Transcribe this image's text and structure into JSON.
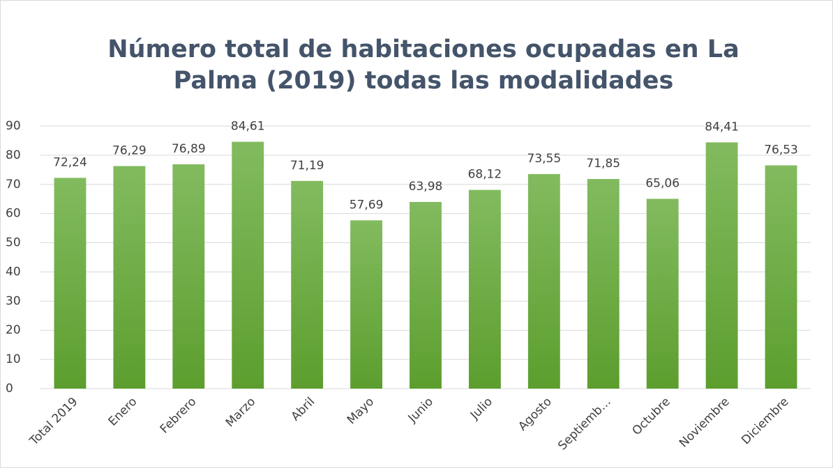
{
  "chart_data": {
    "type": "bar",
    "title": [
      "Número total  de habitaciones ocupadas en  La",
      "Palma (2019) todas las modalidades"
    ],
    "categories": [
      "Total 2019",
      "Enero",
      "Febrero",
      "Marzo",
      "Abril",
      "Mayo",
      "Junio",
      "Julio",
      "Agosto",
      "Septiemb…",
      "Octubre",
      "Noviembre",
      "Diciembre"
    ],
    "values": [
      72.24,
      76.29,
      76.89,
      84.61,
      71.19,
      57.69,
      63.98,
      68.12,
      73.55,
      71.85,
      65.06,
      84.41,
      76.53
    ],
    "value_labels": [
      "72,24",
      "76,29",
      "76,89",
      "84,61",
      "71,19",
      "57,69",
      "63,98",
      "68,12",
      "73,55",
      "71,85",
      "65,06",
      "84,41",
      "76,53"
    ],
    "color": "#70ad47",
    "ylim": [
      0,
      90
    ],
    "yticks": [
      0,
      10,
      20,
      30,
      40,
      50,
      60,
      70,
      80,
      90
    ],
    "grid": true
  }
}
